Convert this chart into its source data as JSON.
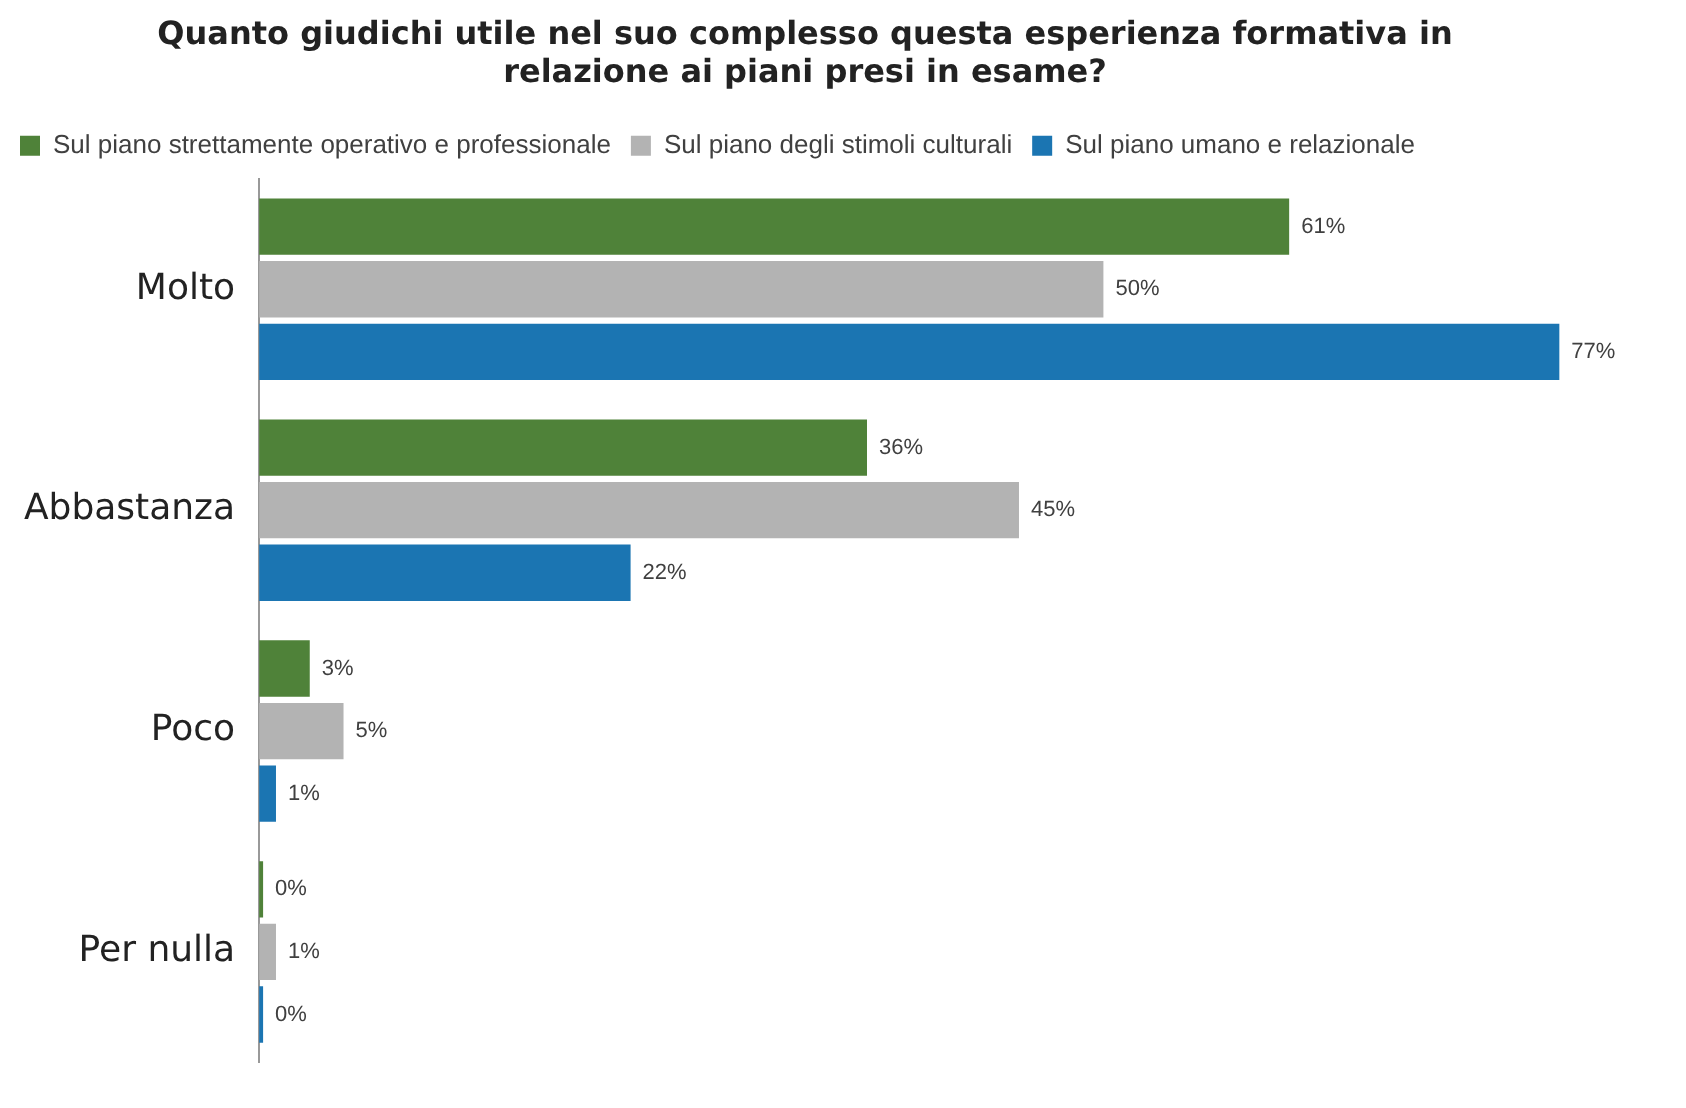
{
  "chart_data": {
    "type": "bar",
    "orientation": "horizontal",
    "title": [
      "Quanto giudichi utile nel suo complesso questa esperienza formativa in",
      "relazione ai piani presi in esame?"
    ],
    "categories": [
      "Molto",
      "Abbastanza",
      "Poco",
      "Per nulla"
    ],
    "series": [
      {
        "name": "Sul piano strettamente operativo e professionale",
        "color": "#4f8239",
        "values": [
          61,
          36,
          3,
          0
        ],
        "value_labels": [
          "61%",
          "36%",
          "3%",
          "0%"
        ]
      },
      {
        "name": "Sul piano degli stimoli culturali",
        "color": "#b3b3b3",
        "values": [
          50,
          45,
          5,
          1
        ],
        "value_labels": [
          "50%",
          "45%",
          "5%",
          "1%"
        ]
      },
      {
        "name": "Sul piano umano e relazionale",
        "color": "#1b75b2",
        "values": [
          77,
          22,
          1,
          0
        ],
        "value_labels": [
          "77%",
          "22%",
          "1%",
          "0%"
        ]
      }
    ],
    "legend": "top left",
    "tick_labels": "y",
    "grid": false
  }
}
